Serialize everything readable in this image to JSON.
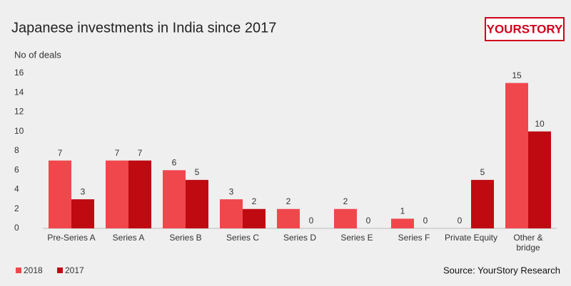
{
  "chart_data": {
    "type": "bar",
    "title": "Japanese investments in India since 2017",
    "logo": "YOURSTORY",
    "y_label": "No of deals",
    "source": "Source: YourStory Research",
    "categories": [
      "Pre-Series A",
      "Series A",
      "Series B",
      "Series C",
      "Series D",
      "Series E",
      "Series F",
      "Private Equity",
      "Other & bridge"
    ],
    "series": [
      {
        "name": "2018",
        "color": "#f0474d",
        "values": [
          7,
          7,
          6,
          3,
          2,
          2,
          1,
          0,
          15
        ]
      },
      {
        "name": "2017",
        "color": "#bf0a12",
        "values": [
          3,
          7,
          5,
          2,
          0,
          0,
          0,
          5,
          10
        ]
      }
    ],
    "ylim": [
      0,
      16
    ],
    "yticks": [
      0,
      2,
      4,
      6,
      8,
      10,
      12,
      14,
      16
    ],
    "grid": false,
    "legend": "bottom-left"
  }
}
